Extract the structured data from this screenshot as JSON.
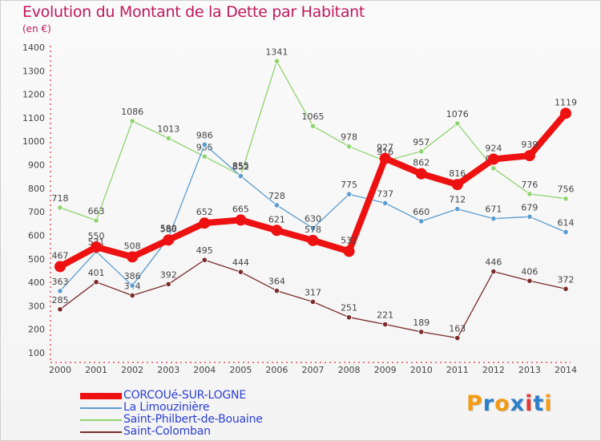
{
  "header": {
    "title": "Evolution du Montant de la Dette par Habitant",
    "unit": "(en €)"
  },
  "logo": {
    "text": "Proxiti",
    "letter_colors": [
      "#f39c12",
      "#2c7fc9",
      "#f39c12",
      "#2c7fc9",
      "#e53935",
      "#2c7fc9",
      "#f39c12"
    ]
  },
  "chart_data": {
    "type": "line",
    "title": "Evolution du Montant de la Dette par Habitant",
    "subtitle": "(en €)",
    "xlabel": "",
    "ylabel": "",
    "x": [
      2000,
      2001,
      2002,
      2003,
      2004,
      2005,
      2006,
      2007,
      2008,
      2009,
      2010,
      2011,
      2012,
      2013,
      2014
    ],
    "ylim": [
      100,
      1400
    ],
    "yticks": [
      100,
      200,
      300,
      400,
      500,
      600,
      700,
      800,
      900,
      1000,
      1100,
      1200,
      1300,
      1400
    ],
    "grid": false,
    "legend_position": "bottom-left",
    "series": [
      {
        "name": "Saint-Colomban",
        "color": "#7b2b2b",
        "values": [
          285,
          401,
          344,
          392,
          495,
          444,
          364,
          317,
          251,
          221,
          189,
          163,
          446,
          406,
          372
        ]
      },
      {
        "name": "Saint-Philbert-de-Bouaine",
        "color": "#8fd46e",
        "values": [
          718,
          663,
          1086,
          1013,
          935,
          855,
          1341,
          1065,
          978,
          916,
          957,
          1076,
          885,
          776,
          756
        ]
      },
      {
        "name": "La Limouzinière",
        "color": "#5b9bd0",
        "values": [
          363,
          531,
          386,
          589,
          986,
          852,
          728,
          630,
          775,
          737,
          660,
          712,
          671,
          679,
          614
        ]
      },
      {
        "name": "CORCOUé-SUR-LOGNE",
        "color": "#ee1111",
        "values": [
          467,
          550,
          508,
          580,
          652,
          665,
          621,
          578,
          532,
          927,
          862,
          816,
          924,
          939,
          1119
        ]
      }
    ],
    "legend": [
      "CORCOUé-SUR-LOGNE",
      "La Limouzinière",
      "Saint-Philbert-de-Bouaine",
      "Saint-Colomban"
    ]
  }
}
